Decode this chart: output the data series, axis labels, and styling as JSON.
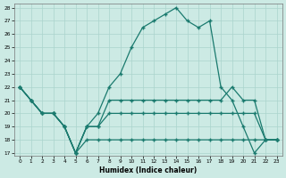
{
  "xlabel": "Humidex (Indice chaleur)",
  "bg_color": "#cceae4",
  "grid_color": "#aad4cc",
  "line_color": "#1a7a6e",
  "x_hours": [
    0,
    1,
    2,
    3,
    4,
    5,
    6,
    7,
    8,
    9,
    10,
    11,
    12,
    13,
    14,
    15,
    16,
    17,
    18,
    19,
    20,
    21,
    22,
    23
  ],
  "main_curve": [
    22,
    21,
    20,
    20,
    19,
    17,
    19,
    20,
    22,
    23,
    25,
    26.5,
    27,
    27.5,
    28,
    27,
    26.5,
    27,
    22,
    21,
    19,
    17,
    18,
    18
  ],
  "low_line": [
    22,
    21,
    20,
    20,
    19,
    17,
    18,
    18,
    18,
    18,
    18,
    18,
    18,
    18,
    18,
    18,
    18,
    18,
    18,
    18,
    18,
    18,
    18,
    18
  ],
  "mid_line1": [
    22,
    21,
    20,
    20,
    19,
    17,
    19,
    19,
    20,
    20,
    20,
    20,
    20,
    20,
    20,
    20,
    20,
    20,
    20,
    20,
    20,
    20,
    18,
    18
  ],
  "mid_line2": [
    22,
    21,
    20,
    20,
    19,
    17,
    19,
    19,
    21,
    21,
    21,
    21,
    21,
    21,
    21,
    21,
    21,
    21,
    21,
    22,
    21,
    21,
    18,
    18
  ],
  "ylim_min": 17,
  "ylim_max": 28,
  "yticks": [
    17,
    18,
    19,
    20,
    21,
    22,
    23,
    24,
    25,
    26,
    27,
    28
  ]
}
